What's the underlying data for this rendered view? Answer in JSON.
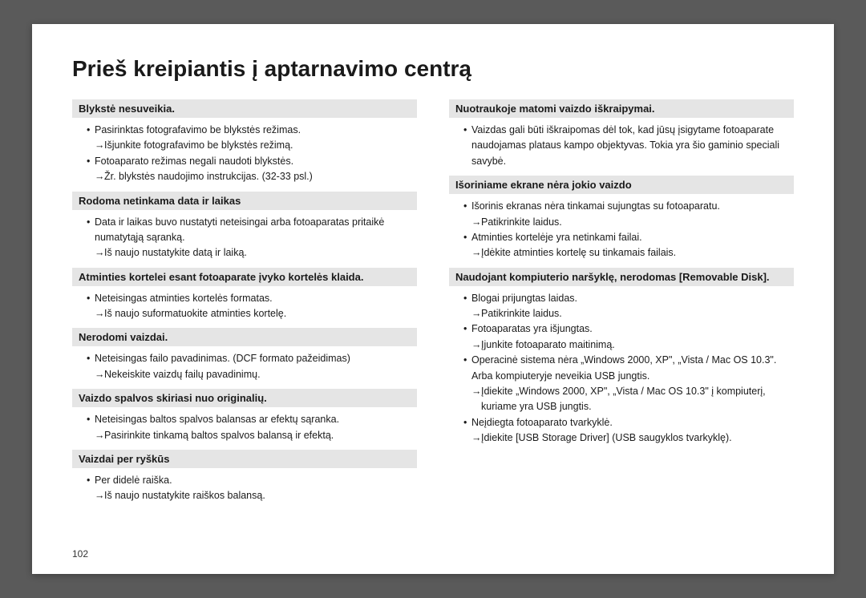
{
  "title": "Prieš kreipiantis į aptarnavimo centrą",
  "pageNumber": "102",
  "style": {
    "page_bg": "#ffffff",
    "outer_bg": "#5a5a5a",
    "heading_bg": "#e5e5e5",
    "text_color": "#1a1a1a",
    "title_fontsize": 28,
    "heading_fontsize": 13,
    "body_fontsize": 12.5
  },
  "left": [
    {
      "heading": "Blykstė nesuveikia.",
      "items": [
        {
          "text": "Pasirinktas fotografavimo be blykstės režimas.",
          "sub": "Išjunkite fotografavimo be blykstės režimą."
        },
        {
          "text": "Fotoaparato režimas negali naudoti blykstės.",
          "sub": "Žr. blykstės naudojimo instrukcijas. (32-33 psl.)"
        }
      ]
    },
    {
      "heading": "Rodoma netinkama data ir laikas",
      "items": [
        {
          "text": "Data ir laikas buvo nustatyti neteisingai arba fotoaparatas pritaikė numatytąją sąranką.",
          "sub": "Iš naujo nustatykite datą ir laiką."
        }
      ]
    },
    {
      "heading": "Atminties kortelei esant fotoaparate įvyko kortelės klaida.",
      "items": [
        {
          "text": "Neteisingas atminties kortelės formatas.",
          "sub": "Iš naujo suformatuokite atminties kortelę."
        }
      ]
    },
    {
      "heading": "Nerodomi vaizdai.",
      "items": [
        {
          "text": "Neteisingas failo pavadinimas. (DCF formato pažeidimas)",
          "sub": "Nekeiskite vaizdų failų pavadinimų."
        }
      ]
    },
    {
      "heading": "Vaizdo spalvos skiriasi nuo originalių.",
      "items": [
        {
          "text": "Neteisingas baltos spalvos balansas ar efektų sąranka.",
          "sub": "Pasirinkite tinkamą baltos spalvos balansą ir efektą."
        }
      ]
    },
    {
      "heading": "Vaizdai per ryškūs",
      "items": [
        {
          "text": "Per didelė raiška.",
          "sub": "Iš naujo nustatykite raiškos balansą."
        }
      ]
    }
  ],
  "right": [
    {
      "heading": "Nuotraukoje matomi vaizdo iškraipymai.",
      "items": [
        {
          "text": "Vaizdas gali būti iškraipomas dėl tok, kad jūsų įsigytame fotoaparate naudojamas plataus kampo objektyvas. Tokia yra šio gaminio speciali savybė."
        }
      ]
    },
    {
      "heading": "Išoriniame ekrane nėra jokio vaizdo",
      "items": [
        {
          "text": "Išorinis ekranas nėra tinkamai sujungtas su fotoaparatu.",
          "sub": "Patikrinkite laidus."
        },
        {
          "text": "Atminties kortelėje yra netinkami failai.",
          "sub": "Įdėkite atminties kortelę su tinkamais failais."
        }
      ]
    },
    {
      "heading": "Naudojant kompiuterio naršyklę, nerodomas [Removable Disk].",
      "items": [
        {
          "text": "Blogai prijungtas laidas.",
          "sub": "Patikrinkite laidus."
        },
        {
          "text": "Fotoaparatas yra išjungtas.",
          "sub": "Įjunkite fotoaparato maitinimą."
        },
        {
          "text": "Operacinė sistema nėra „Windows 2000, XP\", „Vista / Mac OS 10.3\". Arba kompiuteryje neveikia USB jungtis.",
          "sub": "Įdiekite „Windows  2000, XP\", „Vista / Mac OS 10.3\" į kompiuterį, kuriame yra USB jungtis."
        },
        {
          "text": "Neįdiegta fotoaparato tvarkyklė.",
          "sub": "Įdiekite [USB Storage Driver] (USB saugyklos tvarkyklę)."
        }
      ]
    }
  ]
}
